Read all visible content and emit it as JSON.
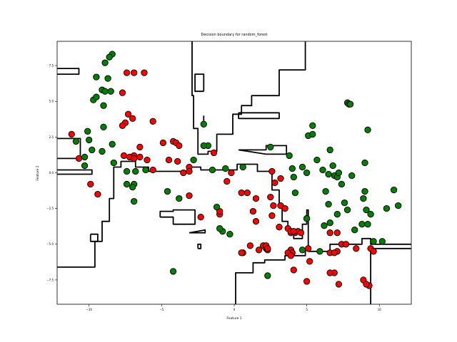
{
  "chart_data": {
    "type": "scatter",
    "title": "Decision boundary for random_forest",
    "xlabel": "Feature 1",
    "ylabel": "Feature 2",
    "xlim": [
      -12.2,
      12.2
    ],
    "ylim": [
      -9.2,
      9.2
    ],
    "xticks": [
      -10,
      -5,
      0,
      5,
      10
    ],
    "xtick_labels": [
      "−10",
      "−5",
      "0",
      "5",
      "10"
    ],
    "yticks": [
      -7.5,
      -5.0,
      -2.5,
      0.0,
      2.5,
      5.0,
      7.5
    ],
    "ytick_labels": [
      "−7.5",
      "−5.0",
      "−2.5",
      "0.0",
      "2.5",
      "5.0",
      "7.5"
    ],
    "grid": false,
    "colors": {
      "class_0": "#ff0000",
      "class_1": "#008000",
      "boundary": "#000000",
      "edge": "#000000"
    },
    "boundary_paths": [
      [
        [
          -12.2,
          7.3
        ],
        [
          -10.7,
          7.3
        ],
        [
          -10.7,
          6.9
        ],
        [
          -12.2,
          6.9
        ]
      ],
      [
        [
          -12.2,
          -6.6
        ],
        [
          -9.6,
          -6.6
        ],
        [
          -9.6,
          -4.8
        ],
        [
          -9.1,
          -4.8
        ],
        [
          -9.1,
          -3.4
        ],
        [
          -8.6,
          -3.4
        ],
        [
          -8.6,
          -1.8
        ],
        [
          -8.3,
          -1.8
        ],
        [
          -8.3,
          0.4
        ],
        [
          -7.8,
          0.4
        ],
        [
          -7.8,
          0.8
        ],
        [
          -6.8,
          0.8
        ],
        [
          -6.8,
          0.4
        ],
        [
          -5.9,
          0.4
        ],
        [
          -5.9,
          0.1
        ],
        [
          -3.1,
          0.1
        ],
        [
          -3.1,
          0.4
        ],
        [
          -2.3,
          0.4
        ],
        [
          -2.3,
          0.2
        ],
        [
          0.2,
          0.2
        ],
        [
          0.2,
          0.6
        ],
        [
          1.6,
          0.6
        ],
        [
          1.6,
          0.1
        ],
        [
          2.6,
          0.1
        ],
        [
          2.6,
          -1.2
        ],
        [
          3.1,
          -1.2
        ],
        [
          3.1,
          -2.4
        ],
        [
          3.3,
          -2.4
        ],
        [
          3.3,
          -3.4
        ],
        [
          3.7,
          -3.4
        ],
        [
          3.7,
          -4.1
        ],
        [
          4.1,
          -4.1
        ],
        [
          4.1,
          -4.6
        ],
        [
          4.7,
          -4.6
        ],
        [
          4.7,
          -3.6
        ],
        [
          5.0,
          -3.6
        ],
        [
          5.0,
          -2.6
        ],
        [
          5.1,
          -2.6
        ],
        [
          5.1,
          -5.5
        ],
        [
          6.6,
          -5.5
        ],
        [
          6.6,
          -5.0
        ],
        [
          8.8,
          -5.0
        ],
        [
          8.8,
          -4.6
        ],
        [
          9.4,
          -4.6
        ],
        [
          9.4,
          -5.0
        ],
        [
          12.2,
          -5.0
        ]
      ],
      [
        [
          -12.2,
          -0.1
        ],
        [
          -9.8,
          -0.1
        ],
        [
          -9.8,
          0.2
        ],
        [
          -12.2,
          0.2
        ]
      ],
      [
        [
          -9.9,
          -4.3
        ],
        [
          -9.4,
          -4.3
        ],
        [
          -9.4,
          -4.8
        ],
        [
          -9.9,
          -4.8
        ],
        [
          -9.9,
          -4.3
        ]
      ],
      [
        [
          -2.9,
          9.2
        ],
        [
          -2.9,
          5.4
        ],
        [
          -2.8,
          5.4
        ],
        [
          -2.8,
          3.1
        ],
        [
          -2.5,
          3.1
        ],
        [
          -2.5,
          1.3
        ],
        [
          -1.8,
          1.3
        ],
        [
          -1.8,
          1.5
        ],
        [
          -1.2,
          1.5
        ],
        [
          -1.2,
          2.7
        ],
        [
          -0.1,
          2.7
        ],
        [
          -0.1,
          4.1
        ],
        [
          0.5,
          4.1
        ],
        [
          0.5,
          4.7
        ],
        [
          1.2,
          4.7
        ],
        [
          1.2,
          5.4
        ],
        [
          3.1,
          5.4
        ],
        [
          3.1,
          7.2
        ],
        [
          4.9,
          7.2
        ],
        [
          4.9,
          9.2
        ]
      ],
      [
        [
          -2.1,
          5.7
        ],
        [
          -2.1,
          6.9
        ],
        [
          -2.7,
          6.9
        ],
        [
          -2.7,
          5.7
        ],
        [
          -2.1,
          5.7
        ]
      ],
      [
        [
          0.3,
          4.2
        ],
        [
          3.1,
          4.2
        ],
        [
          3.1,
          3.8
        ],
        [
          0.3,
          3.8
        ],
        [
          0.3,
          4.2
        ]
      ],
      [
        [
          -2.1,
          4.0
        ],
        [
          -2.1,
          3.2
        ]
      ],
      [
        [
          0.3,
          1.6
        ],
        [
          2.2,
          1.6
        ],
        [
          2.2,
          1.9
        ],
        [
          3.6,
          1.9
        ],
        [
          3.6,
          1.3
        ],
        [
          2.2,
          1.3
        ],
        [
          0.3,
          1.6
        ]
      ],
      [
        [
          -5.1,
          -3.1
        ],
        [
          -5.1,
          -2.7
        ],
        [
          -4.2,
          -2.7
        ],
        [
          -4.2,
          -2.6
        ],
        [
          -2.7,
          -2.6
        ],
        [
          -2.7,
          -3.6
        ],
        [
          -4.2,
          -3.6
        ],
        [
          -4.2,
          -3.1
        ],
        [
          -5.1,
          -3.1
        ]
      ],
      [
        [
          -3.1,
          -4.2
        ],
        [
          -2.0,
          -4.2
        ],
        [
          -2.0,
          -4.0
        ],
        [
          -3.1,
          -4.2
        ]
      ],
      [
        [
          -2.5,
          -5.3
        ],
        [
          -2.3,
          -5.3
        ],
        [
          -2.3,
          -5.0
        ],
        [
          -2.5,
          -5.0
        ],
        [
          -2.5,
          -5.3
        ]
      ],
      [
        [
          0.1,
          -9.2
        ],
        [
          0.1,
          -7.0
        ],
        [
          1.3,
          -7.0
        ],
        [
          1.3,
          -6.3
        ],
        [
          2.1,
          -6.3
        ],
        [
          2.1,
          -6.1
        ],
        [
          3.5,
          -6.1
        ],
        [
          3.5,
          -5.8
        ],
        [
          4.9,
          -5.8
        ],
        [
          4.9,
          -5.3
        ],
        [
          5.3,
          -5.3
        ]
      ],
      [
        [
          -12.2,
          2.4
        ],
        [
          -10.6,
          2.4
        ],
        [
          -10.6,
          1.0
        ],
        [
          -12.2,
          1.0
        ]
      ],
      [
        [
          9.4,
          -9.2
        ],
        [
          9.4,
          -5.3
        ],
        [
          12.2,
          -5.3
        ]
      ]
    ],
    "series": [
      {
        "class": 0,
        "x": [
          -7.4,
          -6.9,
          -6.2,
          -7.7,
          -7.3,
          -7.0,
          -7.5,
          -7.7,
          -5.6,
          -6.5,
          -4.9,
          -4.2,
          -4.0,
          -3.8,
          -3.1,
          -4.5,
          -3.9,
          -3.5,
          -3.1,
          -6.9,
          -6.5,
          -7.2,
          -7.6,
          -6.9,
          -6.0,
          -5.6,
          -10.7,
          -11.2,
          -9.9,
          -9.4,
          -1.4,
          -0.2,
          -0.5,
          0.5,
          0.9,
          1.5,
          2.6,
          2.8,
          3.2,
          2.5,
          2.7,
          1.3,
          1.5,
          2.6,
          3.1,
          3.7,
          3.9,
          4.2,
          4.4,
          3.2,
          3.5,
          3.9,
          4.1,
          4.6,
          5.0,
          6.6,
          7.1,
          7.1,
          7.4,
          6.6,
          6.9,
          6.9,
          6.6,
          7.2,
          7.7,
          8.4,
          8.9,
          9.3,
          9.1,
          9.4,
          9.6,
          1.7,
          0.6,
          2.0,
          2.2,
          2.3,
          3.9,
          4.0,
          4.1,
          5.2,
          5.0,
          5.1,
          0.5,
          1.1,
          2.2,
          2.3,
          3.7,
          3.9,
          -3.1,
          -1.0,
          -1.0,
          -2.3
        ],
        "y": [
          7.0,
          7.0,
          7.0,
          5.6,
          4.1,
          3.8,
          3.5,
          3.3,
          3.6,
          1.8,
          2.1,
          2.2,
          2.1,
          1.9,
          0.4,
          0.9,
          0.8,
          0.0,
          0.1,
          1.2,
          1.1,
          1.1,
          1.2,
          1.0,
          0.9,
          0.2,
          1.0,
          2.7,
          -0.8,
          -1.5,
          1.4,
          0.0,
          -0.6,
          -1.4,
          -1.4,
          -1.8,
          0.1,
          -0.7,
          -0.4,
          -1.7,
          -2.3,
          -2.7,
          -3.4,
          -3.0,
          -3.8,
          -3.9,
          -4.2,
          -4.2,
          -4.1,
          -2.3,
          -2.5,
          -4.1,
          -4.1,
          -4.2,
          -3.2,
          -4.2,
          -4.2,
          -5.5,
          -5.0,
          -5.6,
          -5.6,
          -7.0,
          -7.0,
          -7.8,
          -5.0,
          -5.3,
          -7.5,
          -7.9,
          -7.8,
          -5.3,
          -5.5,
          -5.4,
          -5.6,
          -5.1,
          -5.3,
          -5.4,
          -5.4,
          -5.6,
          -6.8,
          -6.2,
          -7.6,
          -5.3,
          -5.6,
          -5.1,
          -5.1,
          -5.3,
          -5.6,
          -5.8,
          -1.6,
          -2.9,
          -2.7,
          -3.1
        ],
        "color": "#ff0000"
      },
      {
        "class": 1,
        "x": [
          -8.4,
          -8.6,
          -8.9,
          -9.5,
          -8.7,
          -9.1,
          -9.7,
          -9.5,
          -8.5,
          -8.9,
          -9.0,
          -9.0,
          -10.1,
          -10.0,
          -9.8,
          -10.9,
          -10.3,
          -9.1,
          -8.4,
          -10.3,
          -8.3,
          -7.4,
          -6.8,
          -7.4,
          -6.9,
          -7.0,
          -6.9,
          -6.1,
          -4.6,
          -3.8,
          -2.8,
          -1.8,
          -2.1,
          -2.1,
          -1.5,
          -0.6,
          -1.2,
          -0.8,
          -0.3,
          -1.0,
          0.6,
          2.5,
          3.8,
          4.7,
          5.0,
          5.1,
          5.4,
          5.4,
          5.7,
          6.6,
          6.8,
          6.9,
          7.1,
          7.2,
          7.4,
          7.6,
          7.8,
          7.9,
          8.0,
          8.1,
          9.0,
          9.2,
          9.0,
          8.9,
          9.1,
          9.4,
          9.2,
          8.8,
          9.6,
          10.5,
          11.0,
          11.3,
          10.2,
          8.3,
          7.8,
          7.1,
          6.5,
          6.3,
          6.2,
          6.6,
          5.9,
          4.7,
          4.2,
          4.1,
          4.0,
          6.1,
          6.5,
          5.0,
          2.3,
          -4.2
        ],
        "y": [
          8.3,
          8.1,
          7.7,
          6.7,
          6.6,
          5.8,
          5.1,
          5.3,
          5.7,
          5.7,
          4.7,
          3.2,
          2.9,
          2.3,
          1.6,
          2.2,
          1.1,
          1.5,
          2.0,
          0.5,
          0.7,
          0.1,
          0.1,
          -0.8,
          -0.8,
          -1.0,
          -2.0,
          0.2,
          -1.3,
          -1.8,
          0.9,
          1.9,
          1.9,
          3.4,
          0.2,
          0.3,
          -2.4,
          -4.1,
          -4.3,
          -3.9,
          0.4,
          1.8,
          1.2,
          0.4,
          0.0,
          2.6,
          2.7,
          3.3,
          0.9,
          1.6,
          0.5,
          -0.2,
          -0.3,
          0.0,
          -0.8,
          -2.1,
          4.9,
          4.8,
          4.8,
          -0.2,
          0.7,
          3.0,
          -1.3,
          -1.8,
          -2.6,
          -2.9,
          -3.6,
          -3.6,
          -4.8,
          -2.5,
          -1.2,
          -2.3,
          -4.8,
          -4.0,
          -2.6,
          -2.9,
          -2.2,
          -1.3,
          -3.7,
          -3.5,
          -5.5,
          -5.4,
          -1.4,
          -0.3,
          0.3,
          0.2,
          -0.1,
          -3.2,
          -7.2,
          -6.9
        ],
        "color": "#008000"
      }
    ]
  }
}
